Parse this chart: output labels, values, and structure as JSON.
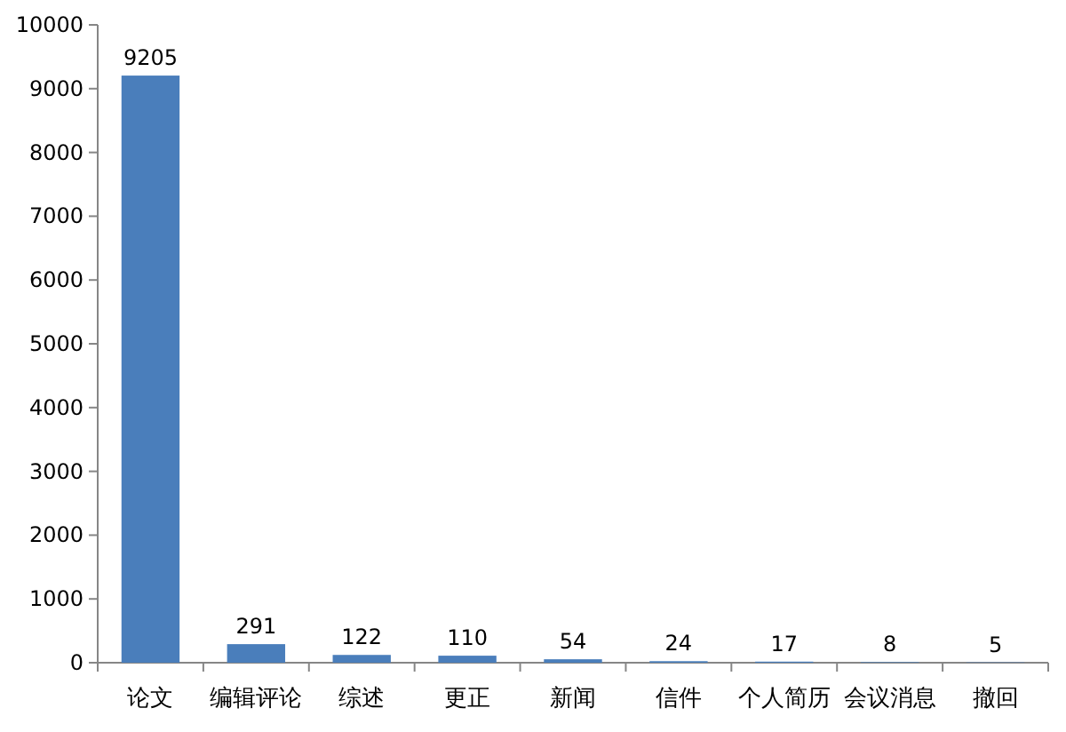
{
  "chart_data": {
    "type": "bar",
    "categories": [
      "论文",
      "编辑评论",
      "综述",
      "更正",
      "新闻",
      "信件",
      "个人简历",
      "会议消息",
      "撤回"
    ],
    "values": [
      9205,
      291,
      122,
      110,
      54,
      24,
      17,
      8,
      5
    ],
    "color": "#4a7ebb",
    "ylim": [
      0,
      10000
    ],
    "yticks": [
      0,
      1000,
      2000,
      3000,
      4000,
      5000,
      6000,
      7000,
      8000,
      9000,
      10000
    ],
    "data_labels": true
  }
}
